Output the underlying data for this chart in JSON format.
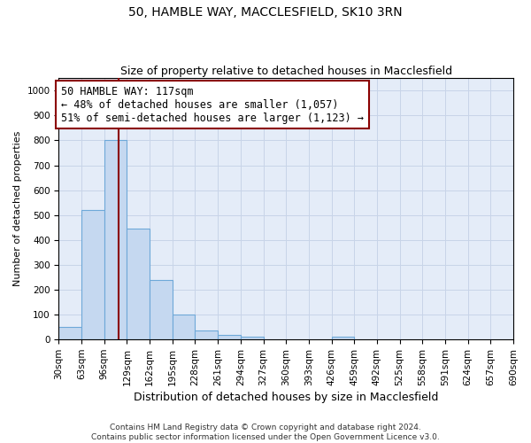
{
  "title": "50, HAMBLE WAY, MACCLESFIELD, SK10 3RN",
  "subtitle": "Size of property relative to detached houses in Macclesfield",
  "xlabel": "Distribution of detached houses by size in Macclesfield",
  "ylabel": "Number of detached properties",
  "footer_line1": "Contains HM Land Registry data © Crown copyright and database right 2024.",
  "footer_line2": "Contains public sector information licensed under the Open Government Licence v3.0.",
  "bin_edges": [
    30,
    63,
    96,
    129,
    162,
    195,
    228,
    261,
    294,
    327,
    360,
    393,
    426,
    459,
    492,
    525,
    558,
    591,
    624,
    657,
    690
  ],
  "bar_heights": [
    50,
    520,
    800,
    445,
    240,
    100,
    37,
    18,
    10,
    0,
    0,
    0,
    10,
    0,
    0,
    0,
    0,
    0,
    0,
    0
  ],
  "bar_color": "#c5d8f0",
  "bar_edgecolor": "#6ea8d8",
  "property_size": 117,
  "vline_color": "#8b0000",
  "annotation_text": "50 HAMBLE WAY: 117sqm\n← 48% of detached houses are smaller (1,057)\n51% of semi-detached houses are larger (1,123) →",
  "annotation_box_color": "#ffffff",
  "annotation_box_edgecolor": "#8b0000",
  "annotation_fontsize": 8.5,
  "ylim": [
    0,
    1050
  ],
  "xlim": [
    30,
    690
  ],
  "grid_color": "#c8d4e8",
  "bg_color": "#e4ecf8",
  "title_fontsize": 10,
  "subtitle_fontsize": 9,
  "xlabel_fontsize": 9,
  "ylabel_fontsize": 8,
  "tick_fontsize": 7.5
}
